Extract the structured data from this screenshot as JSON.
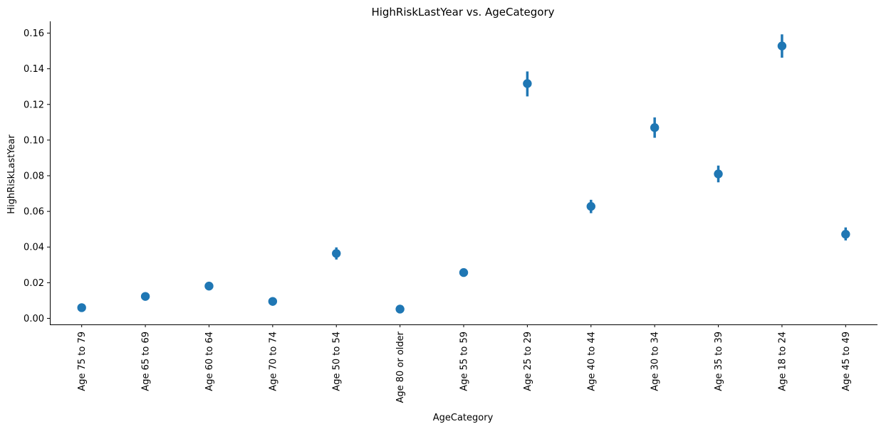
{
  "chart_data": {
    "type": "scatter",
    "title": "HighRiskLastYear vs. AgeCategory",
    "xlabel": "AgeCategory",
    "ylabel": "HighRiskLastYear",
    "categories": [
      "Age 75 to 79",
      "Age 65 to 69",
      "Age 60 to 64",
      "Age 70 to 74",
      "Age 50 to 54",
      "Age 80 or older",
      "Age 55 to 59",
      "Age 25 to 29",
      "Age 40 to 44",
      "Age 30 to 34",
      "Age 35 to 39",
      "Age 18 to 24",
      "Age 45 to 49"
    ],
    "values": [
      0.006,
      0.0123,
      0.0181,
      0.0095,
      0.0364,
      0.0052,
      0.0257,
      0.1317,
      0.0628,
      0.107,
      0.081,
      0.1528,
      0.0472
    ],
    "ci_low": [
      0.0055,
      0.0113,
      0.0168,
      0.0087,
      0.033,
      0.0045,
      0.0236,
      0.1245,
      0.059,
      0.1013,
      0.0763,
      0.1462,
      0.0437
    ],
    "ci_high": [
      0.0066,
      0.0133,
      0.0194,
      0.0104,
      0.0398,
      0.0059,
      0.028,
      0.1385,
      0.0665,
      0.1127,
      0.0857,
      0.1593,
      0.051
    ],
    "yticks": [
      "0.00",
      "0.02",
      "0.04",
      "0.06",
      "0.08",
      "0.10",
      "0.12",
      "0.14",
      "0.16"
    ],
    "ylim": [
      -0.0034,
      0.1666
    ],
    "grid": false,
    "legend": "none",
    "color": "#1f77b4"
  }
}
